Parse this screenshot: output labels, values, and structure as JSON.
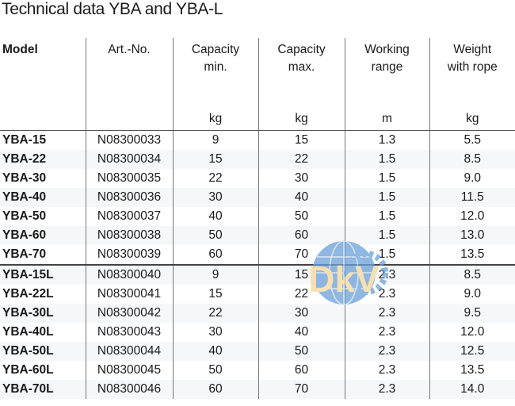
{
  "title": "Technical data YBA and YBA-L",
  "columns": [
    {
      "label": "Model",
      "unit": ""
    },
    {
      "label": "Art.-No.",
      "unit": ""
    },
    {
      "label": "Capacity min.",
      "unit": "kg"
    },
    {
      "label": "Capacity max.",
      "unit": "kg"
    },
    {
      "label": "Working range",
      "unit": "m"
    },
    {
      "label": "Weight with rope",
      "unit": "kg"
    }
  ],
  "rows": [
    [
      "YBA-15",
      "N08300033",
      "9",
      "15",
      "1.3",
      "5.5"
    ],
    [
      "YBA-22",
      "N08300034",
      "15",
      "22",
      "1.5",
      "8.5"
    ],
    [
      "YBA-30",
      "N08300035",
      "22",
      "30",
      "1.5",
      "9.0"
    ],
    [
      "YBA-40",
      "N08300036",
      "30",
      "40",
      "1.5",
      "11.5"
    ],
    [
      "YBA-50",
      "N08300037",
      "40",
      "50",
      "1.5",
      "12.0"
    ],
    [
      "YBA-60",
      "N08300038",
      "50",
      "60",
      "1.5",
      "13.0"
    ],
    [
      "YBA-70",
      "N08300039",
      "60",
      "70",
      "1.5",
      "13.5"
    ],
    [
      "YBA-15L",
      "N08300040",
      "9",
      "15",
      "2.3",
      "8.5"
    ],
    [
      "YBA-22L",
      "N08300041",
      "15",
      "22",
      "2.3",
      "9.0"
    ],
    [
      "YBA-30L",
      "N08300042",
      "22",
      "30",
      "2.3",
      "9.5"
    ],
    [
      "YBA-40L",
      "N08300043",
      "30",
      "40",
      "2.3",
      "12.0"
    ],
    [
      "YBA-50L",
      "N08300044",
      "40",
      "50",
      "2.3",
      "12.5"
    ],
    [
      "YBA-60L",
      "N08300045",
      "50",
      "60",
      "2.3",
      "13.5"
    ],
    [
      "YBA-70L",
      "N08300046",
      "60",
      "70",
      "2.3",
      "14.0"
    ]
  ],
  "watermark": {
    "text": "DKV",
    "colors": {
      "globe": "#6a9fd8",
      "letters": "#f5d79a"
    }
  }
}
